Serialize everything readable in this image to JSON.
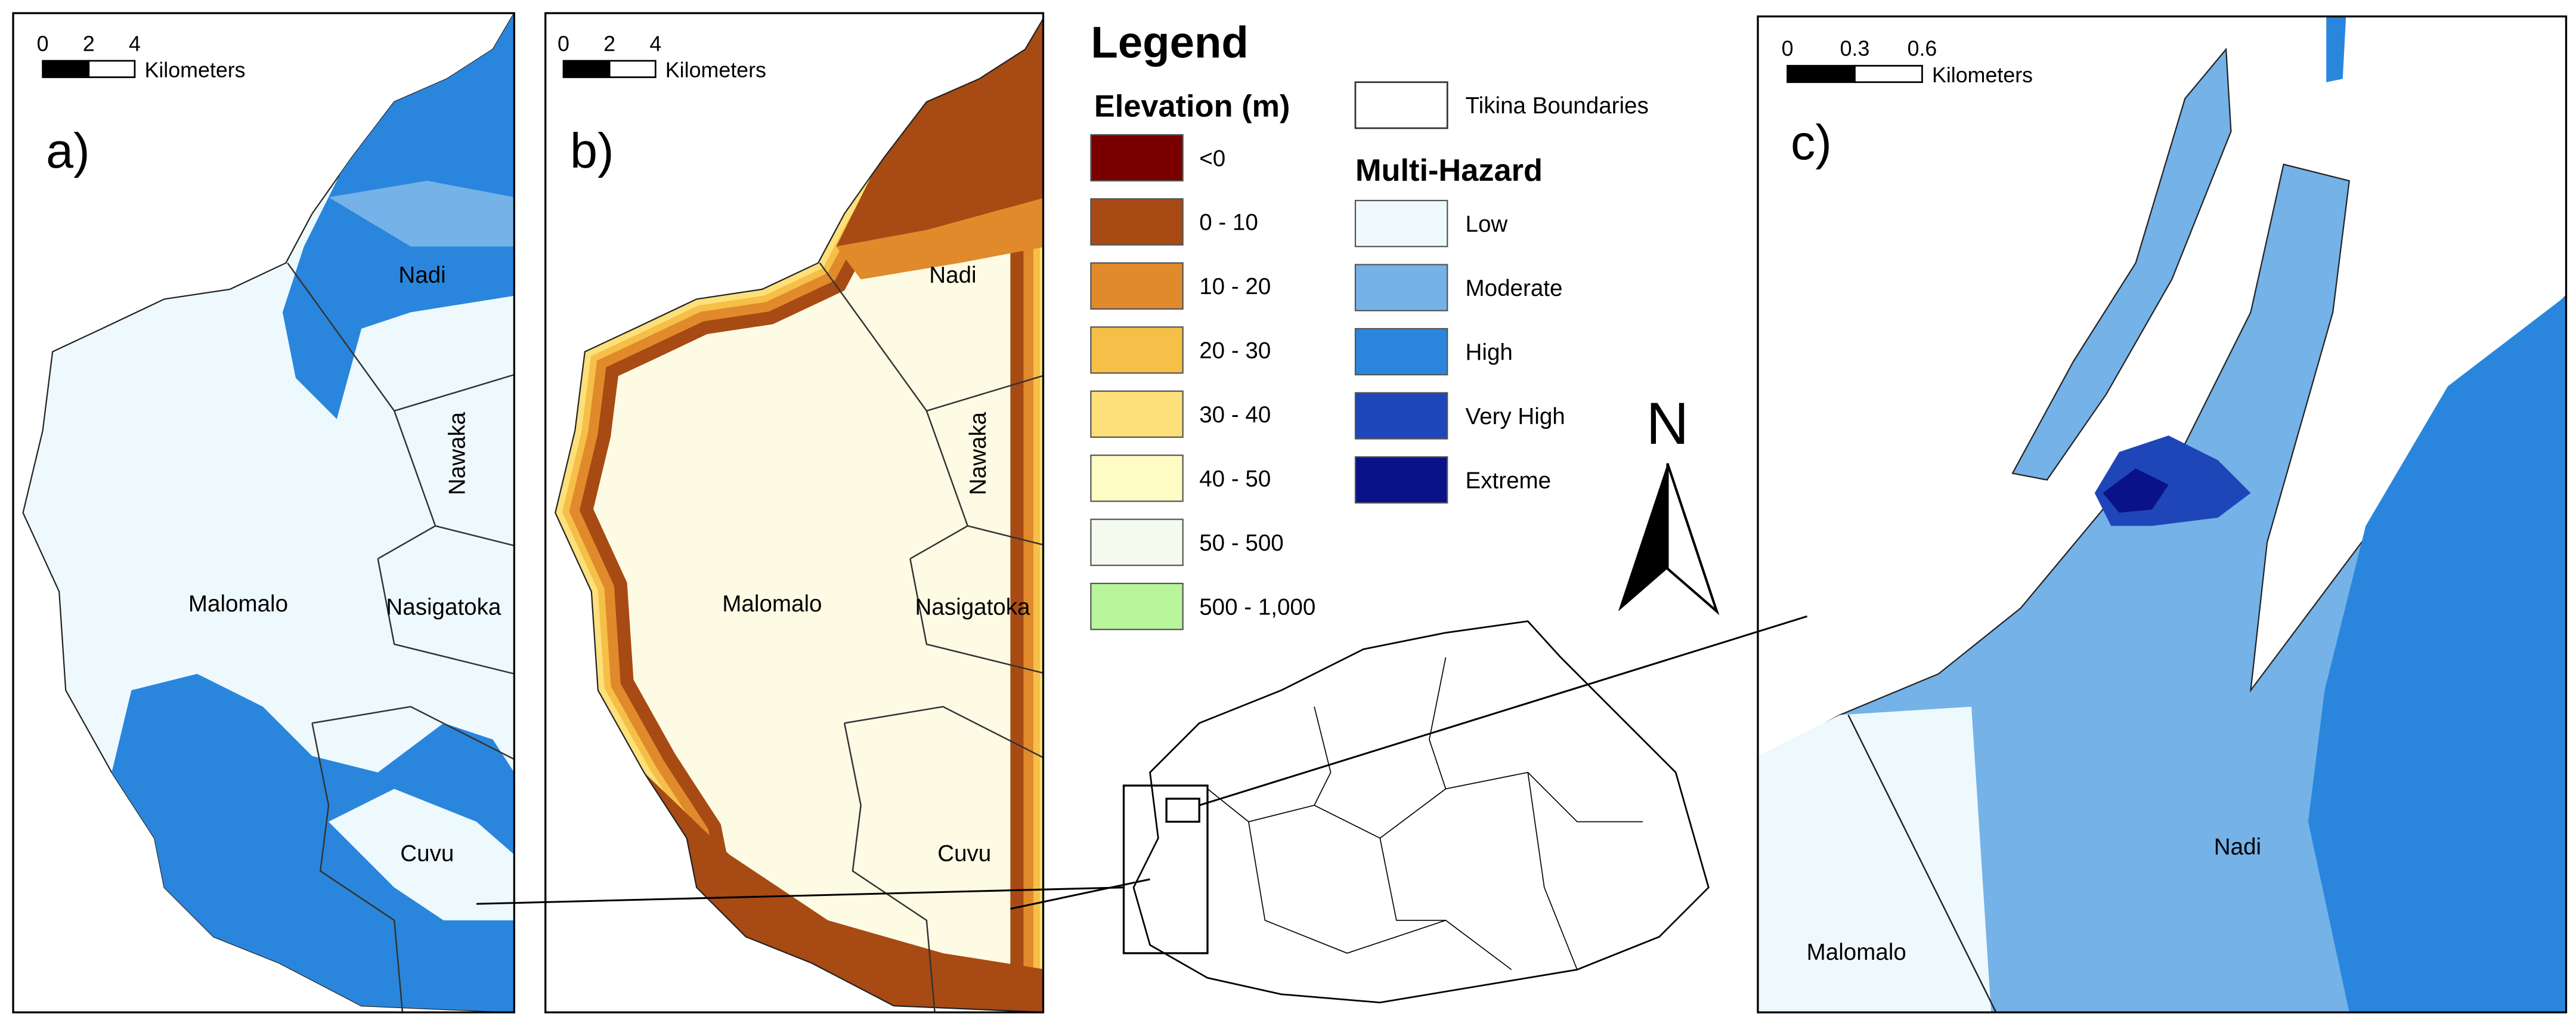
{
  "panels": [
    {
      "label": "a)",
      "scale_bar": {
        "ticks": [
          "0",
          "2",
          "4"
        ],
        "unit": "Kilometers"
      },
      "places": [
        "Nadi",
        "Nawaka",
        "Malomalo",
        "Nasigatoka",
        "Cuvu"
      ]
    },
    {
      "label": "b)",
      "scale_bar": {
        "ticks": [
          "0",
          "2",
          "4"
        ],
        "unit": "Kilometers"
      },
      "places": [
        "Nadi",
        "Nawaka",
        "Malomalo",
        "Nasigatoka",
        "Cuvu"
      ]
    },
    {
      "label": "c)",
      "scale_bar": {
        "ticks": [
          "0",
          "0.3",
          "0.6"
        ],
        "unit": "Kilometers"
      },
      "places": [
        "Nadi",
        "Malomalo"
      ]
    }
  ],
  "legend": {
    "title": "Legend",
    "elevation": {
      "title": "Elevation (m)",
      "classes": [
        {
          "label": "<0",
          "color": "#7a0000"
        },
        {
          "label": "0 - 10",
          "color": "#a84a14"
        },
        {
          "label": "10 - 20",
          "color": "#e08a2c"
        },
        {
          "label": "20 - 30",
          "color": "#f5bf48"
        },
        {
          "label": "30 - 40",
          "color": "#fde07a"
        },
        {
          "label": "40 - 50",
          "color": "#fffbc4"
        },
        {
          "label": "50 - 500",
          "color": "#f4fbee"
        },
        {
          "label": "500 - 1,000",
          "color": "#b9f59a"
        }
      ]
    },
    "boundaries": {
      "label": "Tikina Boundaries"
    },
    "hazard": {
      "title": "Multi-Hazard",
      "classes": [
        {
          "label": "Low",
          "color": "#eef9fd"
        },
        {
          "label": "Moderate",
          "color": "#74b2e8"
        },
        {
          "label": "High",
          "color": "#2a86dc"
        },
        {
          "label": "Very High",
          "color": "#1f46b8"
        },
        {
          "label": "Extreme",
          "color": "#0a128a"
        }
      ]
    }
  },
  "north": "N"
}
